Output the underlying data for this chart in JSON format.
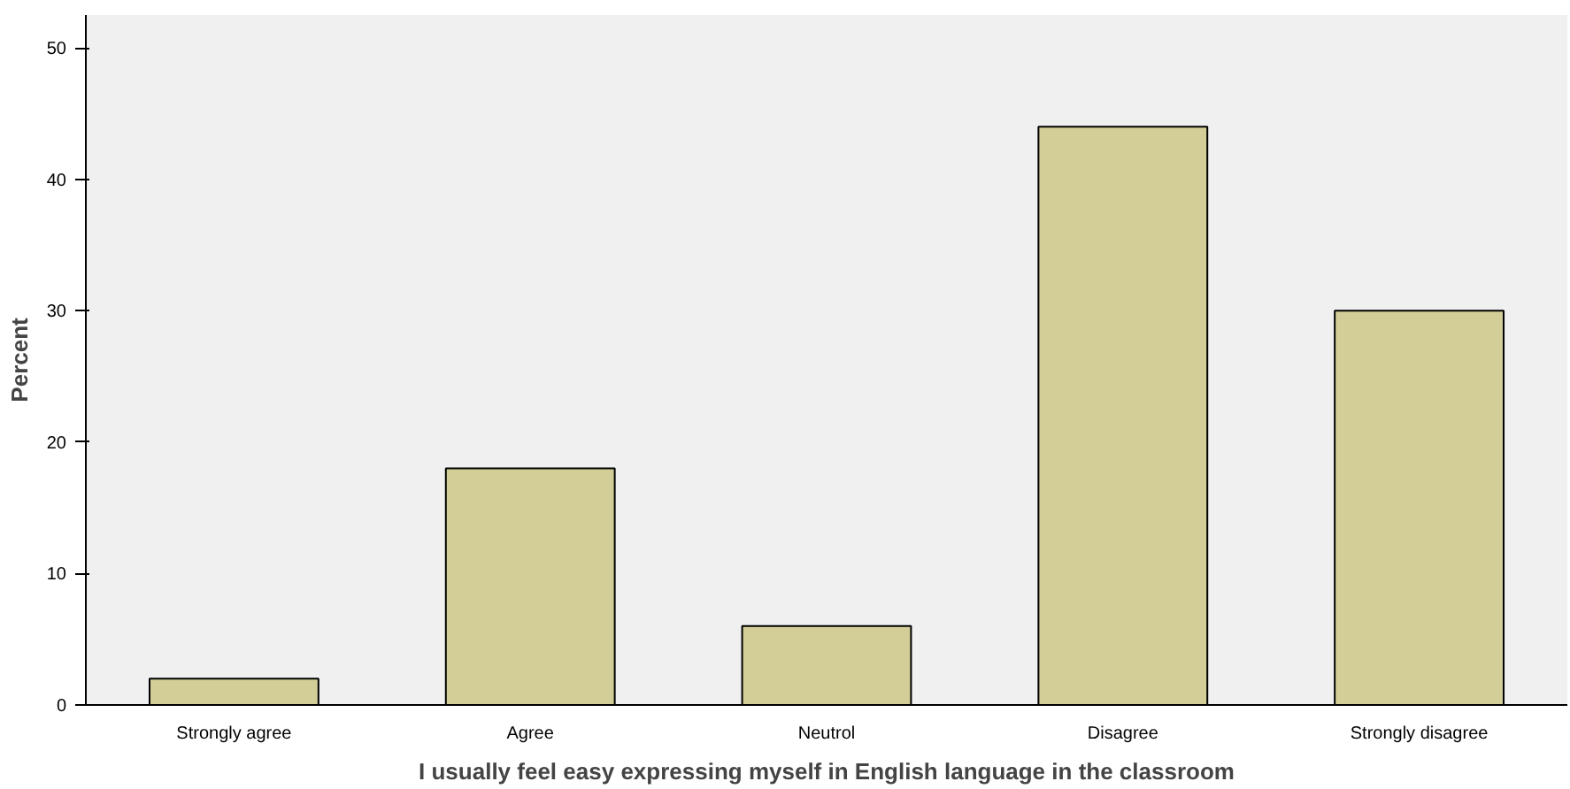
{
  "chart_data": {
    "type": "bar",
    "xlabel": "I usually feel easy expressing myself in English language in the classroom",
    "ylabel": "Percent",
    "categories": [
      "Strongly agree",
      "Agree",
      "Neutrol",
      "Disagree",
      "Strongly disagree"
    ],
    "values": [
      2,
      18,
      6,
      44,
      30
    ],
    "color": "#d3ce98",
    "ylim": [
      0,
      52.5
    ],
    "yticks": [
      0,
      10,
      20,
      30,
      40,
      50
    ],
    "grid": false
  }
}
